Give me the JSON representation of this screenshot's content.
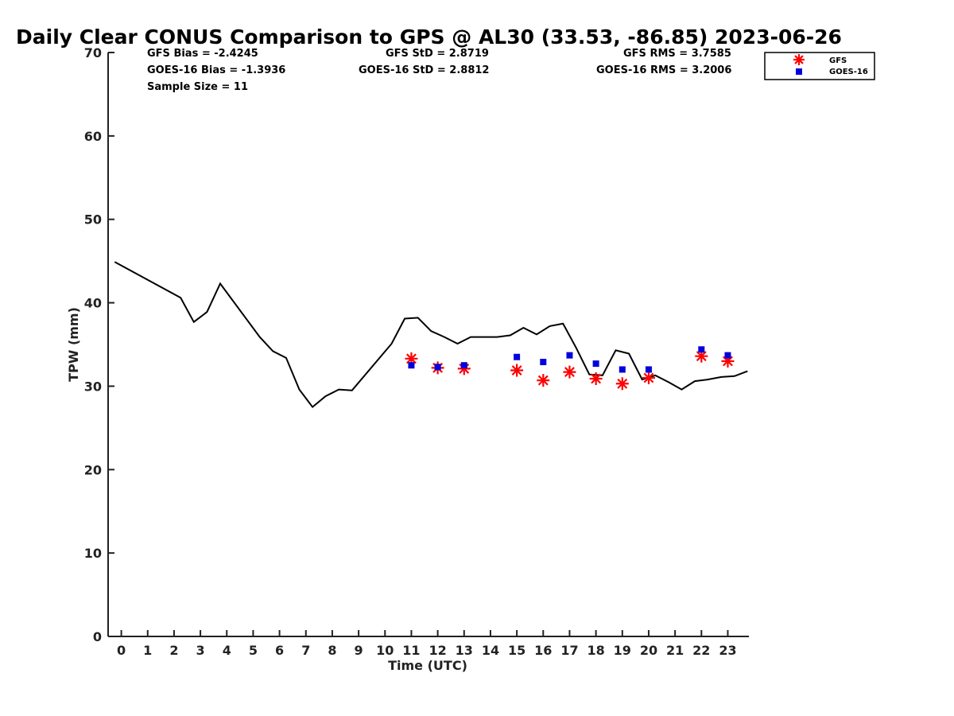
{
  "chart_data": {
    "type": "line",
    "title": "Daily Clear CONUS Comparison to GPS @ AL30 (33.53, -86.85) 2023-06-26",
    "xlabel": "Time (UTC)",
    "ylabel": "TPW (mm)",
    "xlim": [
      -0.5,
      23.8
    ],
    "ylim": [
      0,
      70
    ],
    "x_ticks": [
      0,
      1,
      2,
      3,
      4,
      5,
      6,
      7,
      8,
      9,
      10,
      11,
      12,
      13,
      14,
      15,
      16,
      17,
      18,
      19,
      20,
      21,
      22,
      23
    ],
    "x_tick_labels": [
      "0",
      "1",
      "2",
      "3",
      "4",
      "5",
      "6",
      "7",
      "8",
      "9",
      "10",
      "11",
      "12",
      "13",
      "14",
      "15",
      "16",
      "17",
      "18",
      "19",
      "20",
      "21",
      "22",
      "23"
    ],
    "y_ticks": [
      0,
      10,
      20,
      30,
      40,
      50,
      60,
      70
    ],
    "y_tick_labels": [
      "0",
      "10",
      "20",
      "30",
      "40",
      "50",
      "60",
      "70"
    ],
    "grid": false,
    "legend_position": "top-right",
    "stats": {
      "gfs_bias": "GFS Bias = -2.4245",
      "goes_bias": "GOES-16 Bias = -1.3936",
      "sample_size": "Sample Size = 11",
      "gfs_std": "GFS StD = 2.8719",
      "goes_std": "GOES-16 StD = 2.8812",
      "gfs_rms": "GFS RMS = 3.7585",
      "goes_rms": "GOES-16 RMS = 3.2006"
    },
    "series": [
      {
        "style": "line",
        "color": "#000000",
        "x": [
          -0.25,
          2.25,
          2.75,
          3.25,
          3.75,
          5.25,
          5.75,
          6.25,
          6.75,
          7.25,
          7.75,
          8.25,
          8.75,
          10.25,
          10.75,
          11.25,
          11.75,
          12.25,
          12.75,
          13.25,
          13.75,
          14.25,
          14.75,
          15.25,
          15.75,
          16.25,
          16.75,
          17.25,
          17.75,
          18.25,
          18.75,
          19.25,
          19.75,
          20.25,
          20.75,
          21.25,
          21.75,
          22.25,
          22.75,
          23.25,
          23.75
        ],
        "y": [
          44.9,
          40.6,
          37.7,
          38.9,
          42.3,
          35.9,
          34.2,
          33.4,
          29.6,
          27.5,
          28.8,
          29.6,
          29.5,
          35.1,
          38.1,
          38.2,
          36.6,
          35.9,
          35.1,
          35.9,
          35.9,
          35.9,
          36.1,
          37.0,
          36.2,
          37.2,
          37.5,
          34.6,
          31.4,
          31.3,
          34.3,
          33.9,
          30.8,
          31.3,
          30.5,
          29.6,
          30.6,
          30.8,
          31.1,
          31.2,
          31.8
        ]
      },
      {
        "name": "GFS",
        "style": "scatter",
        "marker": "asterisk",
        "color": "#ff0000",
        "x": [
          11,
          12,
          13,
          15,
          16,
          17,
          18,
          19,
          20,
          22,
          23
        ],
        "y": [
          33.3,
          32.2,
          32.1,
          31.9,
          30.7,
          31.7,
          30.9,
          30.3,
          31.0,
          33.6,
          33.0
        ]
      },
      {
        "name": "GOES-16",
        "style": "scatter",
        "marker": "square",
        "color": "#0000dd",
        "x": [
          11,
          12,
          13,
          15,
          16,
          17,
          18,
          19,
          20,
          22,
          23
        ],
        "y": [
          32.5,
          32.3,
          32.5,
          33.5,
          32.9,
          33.7,
          32.7,
          32.0,
          32.0,
          34.4,
          33.7
        ]
      }
    ]
  }
}
